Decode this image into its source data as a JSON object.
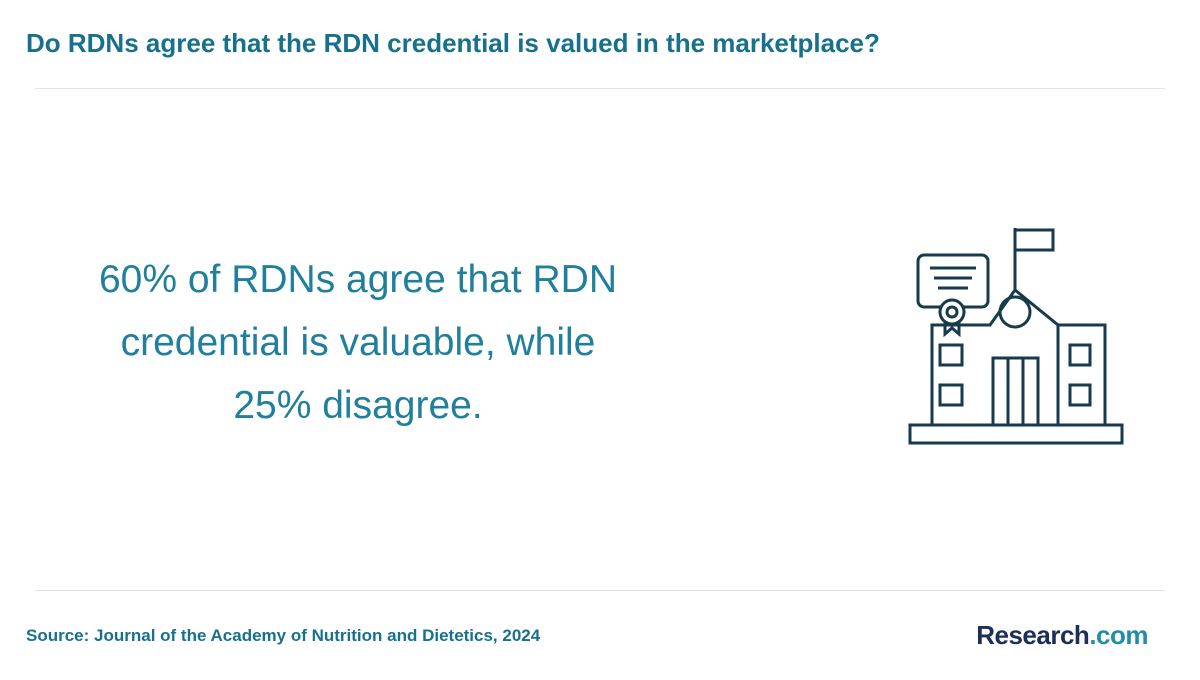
{
  "header": {
    "title": "Do RDNs agree that the RDN credential is valued in the marketplace?"
  },
  "statement": {
    "lines": [
      "60% of RDNs agree that RDN",
      "credential is valuable, while",
      "25% disagree."
    ]
  },
  "footer": {
    "source": "Source: Journal of the Academy of Nutrition and Dietetics, 2024",
    "logo": {
      "name": "Research",
      "suffix": ".com"
    }
  }
}
